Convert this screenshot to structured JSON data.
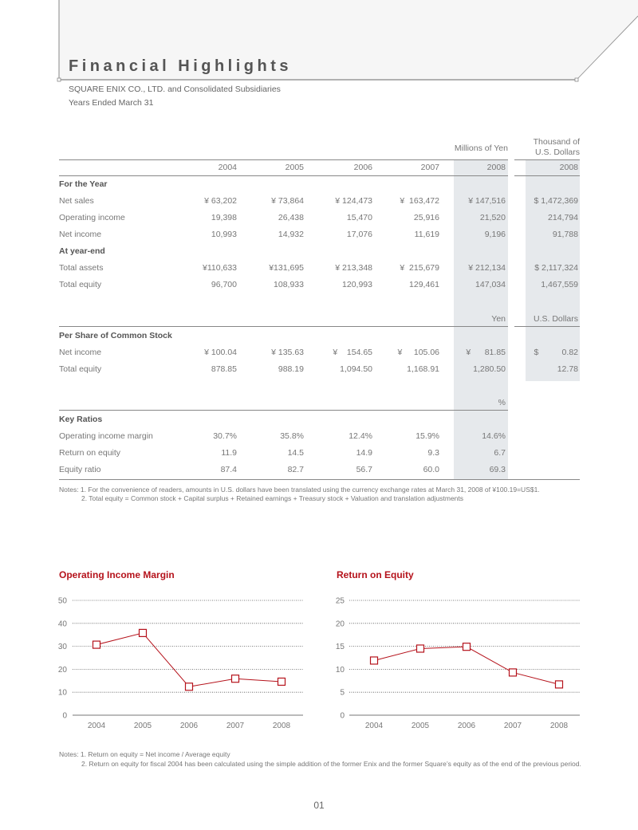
{
  "header": {
    "title": "Financial Highlights",
    "company": "SQUARE ENIX CO., LTD. and Consolidated Subsidiaries",
    "period": "Years Ended March 31"
  },
  "table": {
    "unit_yen": "Millions of Yen",
    "unit_usd_line1": "Thousand of",
    "unit_usd_line2": "U.S. Dollars",
    "years": [
      "2004",
      "2005",
      "2006",
      "2007",
      "2008",
      "2008"
    ],
    "sections": [
      {
        "title": "For the Year",
        "rows": [
          {
            "label": "Net sales",
            "values": [
              "¥ 63,202",
              "¥ 73,864",
              "¥ 124,473",
              "¥  163,472",
              "¥ 147,516",
              "$ 1,472,369"
            ]
          },
          {
            "label": "Operating income",
            "values": [
              "19,398",
              "26,438",
              "15,470",
              "25,916",
              "21,520",
              "214,794"
            ]
          },
          {
            "label": "Net income",
            "values": [
              "10,993",
              "14,932",
              "17,076",
              "11,619",
              "9,196",
              "91,788"
            ]
          }
        ]
      },
      {
        "title": "At year-end",
        "rows": [
          {
            "label": "Total assets",
            "values": [
              "¥110,633",
              "¥131,695",
              "¥ 213,348",
              "¥  215,679",
              "¥ 212,134",
              "$ 2,117,324"
            ]
          },
          {
            "label": "Total equity",
            "values": [
              "96,700",
              "108,933",
              "120,993",
              "129,461",
              "147,034",
              "1,467,559"
            ]
          }
        ]
      }
    ],
    "unit_yen2": "Yen",
    "unit_usd2": "U.S. Dollars",
    "per_share": {
      "title": "Per Share of Common Stock",
      "rows": [
        {
          "label": "Net income",
          "values": [
            "¥ 100.04",
            "¥ 135.63",
            "¥    154.65",
            "¥     105.06",
            "¥      81.85",
            "$          0.82"
          ]
        },
        {
          "label": "Total equity",
          "values": [
            "878.85",
            "988.19",
            "1,094.50",
            "1,168.91",
            "1,280.50",
            "12.78"
          ]
        }
      ]
    },
    "unit_pct": "%",
    "ratios": {
      "title": "Key Ratios",
      "rows": [
        {
          "label": "Operating income margin",
          "values": [
            "30.7%",
            "35.8%",
            "12.4%",
            "15.9%",
            "14.6%"
          ]
        },
        {
          "label": "Return on equity",
          "values": [
            "11.9",
            "14.5",
            "14.9",
            "9.3",
            "6.7"
          ]
        },
        {
          "label": "Equity ratio",
          "values": [
            "87.4",
            "82.7",
            "56.7",
            "60.0",
            "69.3"
          ]
        }
      ]
    },
    "notes": [
      "Notes: 1. For the convenience of readers, amounts in U.S. dollars have been translated using the currency exchange rates at March 31, 2008 of ¥100.19=US$1.",
      "2. Total equity = Common stock + Capital surplus + Retained earnings + Treasury stock + Valuation and translation adjustments"
    ]
  },
  "chart_data": [
    {
      "type": "line",
      "title": "Operating Income Margin",
      "categories": [
        "2004",
        "2005",
        "2006",
        "2007",
        "2008"
      ],
      "values": [
        30.7,
        35.8,
        12.4,
        15.9,
        14.6
      ],
      "ylim": [
        0,
        50
      ],
      "yticks": [
        "0",
        "10",
        "20",
        "30",
        "40",
        "50"
      ],
      "grid": true,
      "color": "#b5121b"
    },
    {
      "type": "line",
      "title": "Return on Equity",
      "categories": [
        "2004",
        "2005",
        "2006",
        "2007",
        "2008"
      ],
      "values": [
        11.9,
        14.5,
        14.9,
        9.3,
        6.7
      ],
      "ylim": [
        0,
        25
      ],
      "yticks": [
        "0",
        "5",
        "10",
        "15",
        "20",
        "25"
      ],
      "grid": true,
      "color": "#b5121b"
    }
  ],
  "chart_notes": [
    "Notes: 1. Return on equity = Net income / Average equity",
    "2. Return on equity for fiscal 2004 has been calculated using the simple addition of the former Enix and the former Square’s equity as of the end of the previous period."
  ],
  "page_number": "01"
}
